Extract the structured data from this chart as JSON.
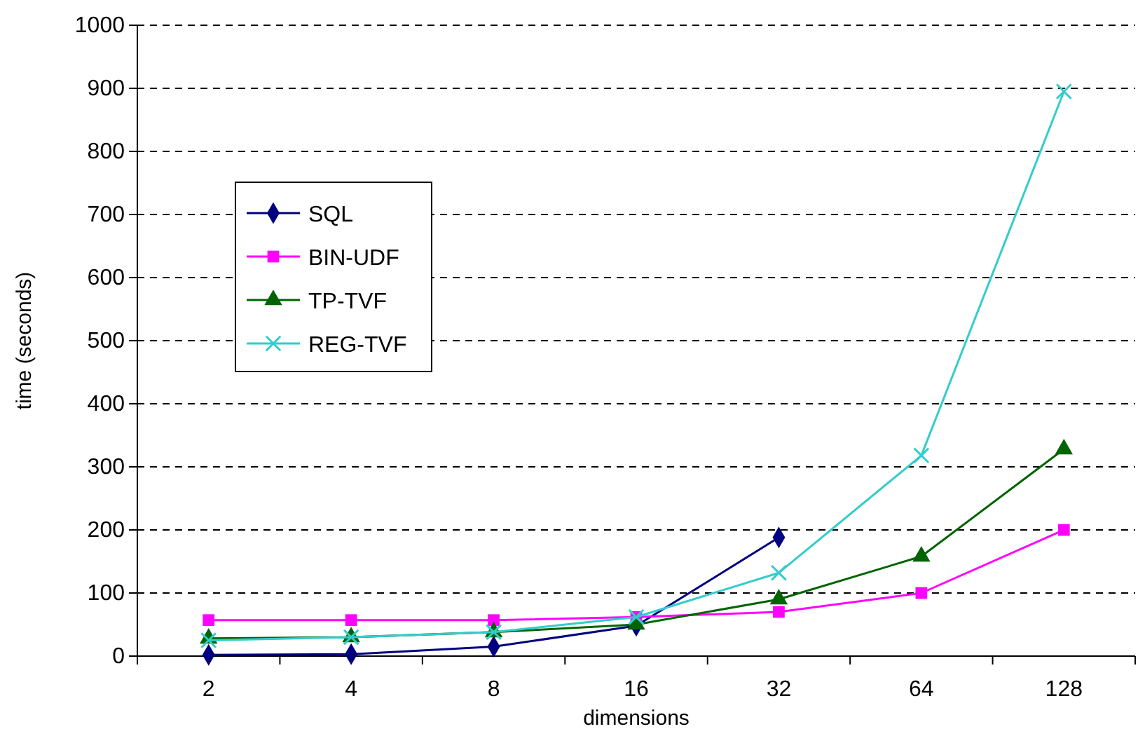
{
  "chart_data": {
    "type": "line",
    "xlabel": "dimensions",
    "ylabel": "time (seconds)",
    "categories": [
      "2",
      "4",
      "8",
      "16",
      "32",
      "64",
      "128"
    ],
    "ylim": [
      0,
      1000
    ],
    "yticks": [
      0,
      100,
      200,
      300,
      400,
      500,
      600,
      700,
      800,
      900,
      1000
    ],
    "grid": "y",
    "legend": "top left",
    "series": [
      {
        "name": "SQL",
        "color": "#000080",
        "marker": "diamond",
        "values": [
          2,
          3,
          15,
          48,
          188,
          null,
          null
        ]
      },
      {
        "name": "BIN-UDF",
        "color": "#ff00ff",
        "marker": "square",
        "values": [
          57,
          57,
          57,
          62,
          70,
          100,
          200
        ]
      },
      {
        "name": "TP-TVF",
        "color": "#006400",
        "marker": "triangle",
        "values": [
          28,
          30,
          38,
          50,
          90,
          158,
          328
        ]
      },
      {
        "name": "REG-TVF",
        "color": "#33cccc",
        "marker": "cross",
        "values": [
          25,
          30,
          38,
          62,
          132,
          318,
          895
        ]
      }
    ]
  }
}
